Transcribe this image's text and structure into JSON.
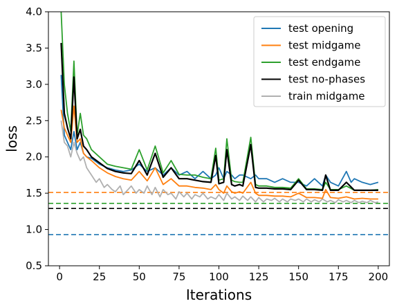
{
  "chart_data": {
    "type": "line",
    "xlabel": "Iterations",
    "ylabel": "loss",
    "xlim": [
      -7,
      207
    ],
    "ylim": [
      0.5,
      4.0
    ],
    "xticks": [
      0,
      25,
      50,
      75,
      100,
      125,
      150,
      175,
      200
    ],
    "yticks": [
      "0.5",
      "1.0",
      "1.5",
      "2.0",
      "2.5",
      "3.0",
      "3.5",
      "4.0"
    ],
    "legend_position": "top-right",
    "grid": false,
    "series": [
      {
        "name": "test opening",
        "color": "#1f77b4",
        "x": [
          1,
          3,
          5,
          7,
          9,
          11,
          13,
          15,
          17,
          20,
          25,
          30,
          35,
          40,
          45,
          50,
          55,
          60,
          65,
          70,
          75,
          80,
          85,
          90,
          95,
          98,
          100,
          103,
          105,
          108,
          110,
          113,
          115,
          120,
          123,
          125,
          130,
          135,
          140,
          145,
          150,
          155,
          160,
          165,
          167,
          170,
          175,
          180,
          183,
          185,
          190,
          195,
          200
        ],
        "y": [
          3.13,
          2.3,
          2.2,
          2.1,
          2.35,
          2.1,
          2.2,
          2.05,
          2.0,
          1.98,
          1.9,
          1.85,
          1.82,
          1.8,
          1.82,
          1.9,
          1.8,
          1.85,
          1.75,
          1.85,
          1.75,
          1.8,
          1.7,
          1.8,
          1.7,
          1.75,
          1.85,
          1.7,
          1.8,
          1.75,
          1.7,
          1.75,
          1.75,
          1.7,
          1.75,
          1.7,
          1.7,
          1.65,
          1.7,
          1.65,
          1.65,
          1.6,
          1.7,
          1.6,
          1.75,
          1.65,
          1.6,
          1.8,
          1.65,
          1.7,
          1.65,
          1.62,
          1.65
        ]
      },
      {
        "name": "test midgame",
        "color": "#ff7f0e",
        "x": [
          1,
          3,
          5,
          7,
          9,
          11,
          13,
          15,
          17,
          20,
          25,
          30,
          35,
          40,
          45,
          50,
          55,
          60,
          65,
          70,
          75,
          80,
          85,
          90,
          95,
          98,
          100,
          103,
          105,
          108,
          110,
          113,
          115,
          120,
          123,
          125,
          130,
          135,
          140,
          145,
          150,
          155,
          160,
          165,
          167,
          170,
          175,
          180,
          185,
          190,
          195,
          200
        ],
        "y": [
          2.65,
          2.4,
          2.3,
          2.2,
          2.7,
          2.2,
          2.25,
          2.05,
          2.0,
          1.95,
          1.85,
          1.78,
          1.73,
          1.7,
          1.68,
          1.8,
          1.67,
          1.85,
          1.62,
          1.7,
          1.6,
          1.6,
          1.58,
          1.57,
          1.55,
          1.62,
          1.55,
          1.5,
          1.6,
          1.52,
          1.5,
          1.52,
          1.5,
          1.65,
          1.5,
          1.47,
          1.47,
          1.46,
          1.46,
          1.45,
          1.5,
          1.44,
          1.44,
          1.43,
          1.55,
          1.44,
          1.43,
          1.45,
          1.42,
          1.43,
          1.42,
          1.42
        ]
      },
      {
        "name": "test endgame",
        "color": "#2ca02c",
        "x": [
          1,
          3,
          5,
          7,
          9,
          11,
          13,
          15,
          17,
          20,
          25,
          30,
          35,
          40,
          45,
          50,
          55,
          60,
          65,
          70,
          75,
          80,
          85,
          90,
          95,
          98,
          100,
          103,
          105,
          108,
          110,
          113,
          115,
          120,
          123,
          125,
          130,
          135,
          140,
          145,
          150,
          155,
          160,
          165,
          167,
          170,
          175,
          180,
          185,
          190,
          195,
          200
        ],
        "y": [
          4.0,
          3.0,
          2.6,
          2.35,
          3.32,
          2.3,
          2.6,
          2.3,
          2.25,
          2.1,
          2.0,
          1.9,
          1.87,
          1.85,
          1.83,
          2.1,
          1.82,
          2.15,
          1.78,
          1.95,
          1.76,
          1.75,
          1.75,
          1.72,
          1.7,
          2.12,
          1.68,
          1.7,
          2.25,
          1.68,
          1.66,
          1.65,
          1.65,
          2.27,
          1.62,
          1.6,
          1.6,
          1.58,
          1.58,
          1.57,
          1.7,
          1.56,
          1.56,
          1.55,
          1.65,
          1.55,
          1.55,
          1.6,
          1.54,
          1.54,
          1.54,
          1.55
        ]
      },
      {
        "name": "test no-phases",
        "color": "#000000",
        "x": [
          1,
          3,
          5,
          7,
          9,
          11,
          13,
          15,
          17,
          20,
          25,
          30,
          35,
          40,
          45,
          50,
          55,
          60,
          65,
          70,
          75,
          80,
          85,
          90,
          95,
          98,
          100,
          103,
          105,
          108,
          110,
          113,
          115,
          120,
          123,
          125,
          130,
          135,
          140,
          145,
          150,
          155,
          160,
          165,
          167,
          170,
          175,
          180,
          185,
          190,
          195,
          200
        ],
        "y": [
          3.57,
          2.6,
          2.4,
          2.25,
          3.1,
          2.25,
          2.38,
          2.15,
          2.1,
          2.0,
          1.92,
          1.84,
          1.8,
          1.78,
          1.77,
          1.95,
          1.75,
          2.05,
          1.72,
          1.85,
          1.7,
          1.7,
          1.68,
          1.66,
          1.65,
          2.02,
          1.63,
          1.65,
          2.1,
          1.62,
          1.6,
          1.62,
          1.6,
          2.17,
          1.58,
          1.57,
          1.57,
          1.56,
          1.56,
          1.55,
          1.68,
          1.55,
          1.55,
          1.54,
          1.75,
          1.54,
          1.54,
          1.65,
          1.54,
          1.54,
          1.54,
          1.54
        ]
      },
      {
        "name": "train midgame",
        "color": "#b0b0b0",
        "x": [
          1,
          3,
          5,
          7,
          9,
          11,
          13,
          15,
          17,
          20,
          23,
          25,
          28,
          30,
          33,
          35,
          38,
          40,
          43,
          45,
          48,
          50,
          53,
          55,
          58,
          60,
          63,
          65,
          68,
          70,
          73,
          75,
          78,
          80,
          83,
          85,
          88,
          90,
          93,
          95,
          98,
          100,
          103,
          105,
          108,
          110,
          113,
          115,
          118,
          120,
          123,
          125,
          128,
          130,
          133,
          135,
          138,
          140,
          143,
          145,
          148,
          150,
          153,
          155,
          158,
          160,
          163,
          165,
          168,
          170,
          173,
          175,
          178,
          180,
          183,
          185,
          188,
          190,
          193,
          195,
          198,
          200
        ],
        "y": [
          2.5,
          2.2,
          2.15,
          2.0,
          2.2,
          2.05,
          1.95,
          2.0,
          1.85,
          1.75,
          1.65,
          1.7,
          1.58,
          1.62,
          1.55,
          1.52,
          1.6,
          1.48,
          1.55,
          1.6,
          1.5,
          1.55,
          1.5,
          1.6,
          1.48,
          1.58,
          1.45,
          1.55,
          1.48,
          1.5,
          1.42,
          1.52,
          1.45,
          1.5,
          1.42,
          1.48,
          1.45,
          1.5,
          1.42,
          1.45,
          1.42,
          1.48,
          1.4,
          1.5,
          1.42,
          1.45,
          1.4,
          1.46,
          1.4,
          1.45,
          1.38,
          1.44,
          1.38,
          1.42,
          1.4,
          1.43,
          1.38,
          1.42,
          1.38,
          1.42,
          1.4,
          1.42,
          1.38,
          1.42,
          1.38,
          1.41,
          1.38,
          1.42,
          1.38,
          1.4,
          1.37,
          1.41,
          1.38,
          1.4,
          1.37,
          1.4,
          1.37,
          1.39,
          1.37,
          1.4,
          1.37,
          1.38
        ]
      }
    ],
    "reference_lines": [
      {
        "y": 1.51,
        "color": "#ff7f0e",
        "style": "dashed"
      },
      {
        "y": 1.36,
        "color": "#2ca02c",
        "style": "dashed"
      },
      {
        "y": 1.29,
        "color": "#000000",
        "style": "dashed"
      },
      {
        "y": 0.93,
        "color": "#1f77b4",
        "style": "dashed"
      }
    ]
  }
}
